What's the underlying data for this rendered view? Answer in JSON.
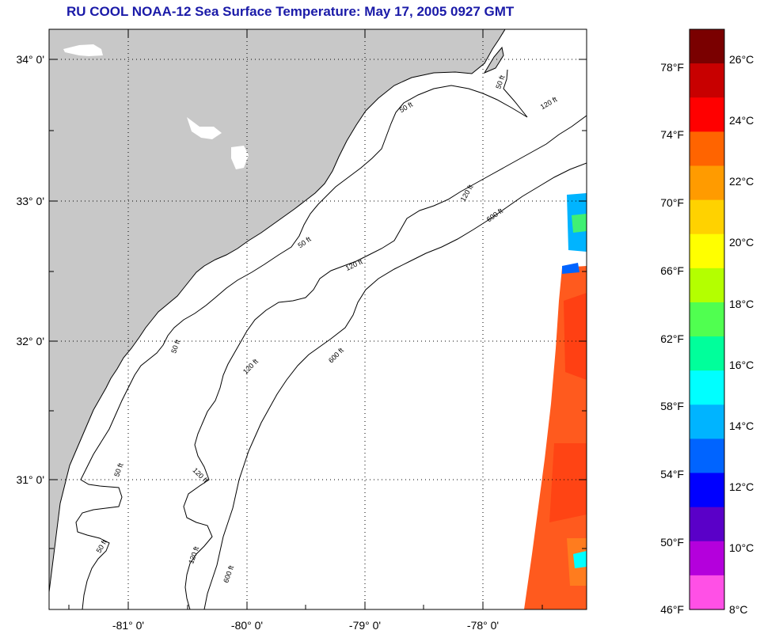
{
  "title": "RU COOL  NOAA-12  Sea Surface Temperature:  May 17, 2005 0927 GMT",
  "lat_labels": [
    "34° 0'",
    "33° 0'",
    "32° 0'",
    "31° 0'"
  ],
  "lon_labels": [
    "-81° 0'",
    "-80° 0'",
    "-79° 0'",
    "-78° 0'"
  ],
  "contour_labels": [
    "50 ft",
    "120 ft",
    "600 ft"
  ],
  "colorbar": {
    "fahrenheit": [
      "78°F",
      "74°F",
      "70°F",
      "66°F",
      "62°F",
      "58°F",
      "54°F",
      "50°F",
      "46°F"
    ],
    "celsius": [
      "26°C",
      "24°C",
      "22°C",
      "20°C",
      "18°C",
      "16°C",
      "14°C",
      "12°C",
      "10°C",
      "8°C"
    ],
    "colors": [
      "#7a0000",
      "#c80000",
      "#ff0000",
      "#ff6400",
      "#ff9b00",
      "#ffd200",
      "#ffff00",
      "#b4ff00",
      "#50ff50",
      "#00ff9b",
      "#00ffff",
      "#00b4ff",
      "#0064ff",
      "#0000ff",
      "#5a00c8",
      "#b400dc",
      "#ff50e6"
    ]
  },
  "colors": {
    "land": "#c8c8c8",
    "ocean": "#ffffff",
    "title": "#1a1aa8",
    "sst_warm": "#ff5a1e"
  }
}
